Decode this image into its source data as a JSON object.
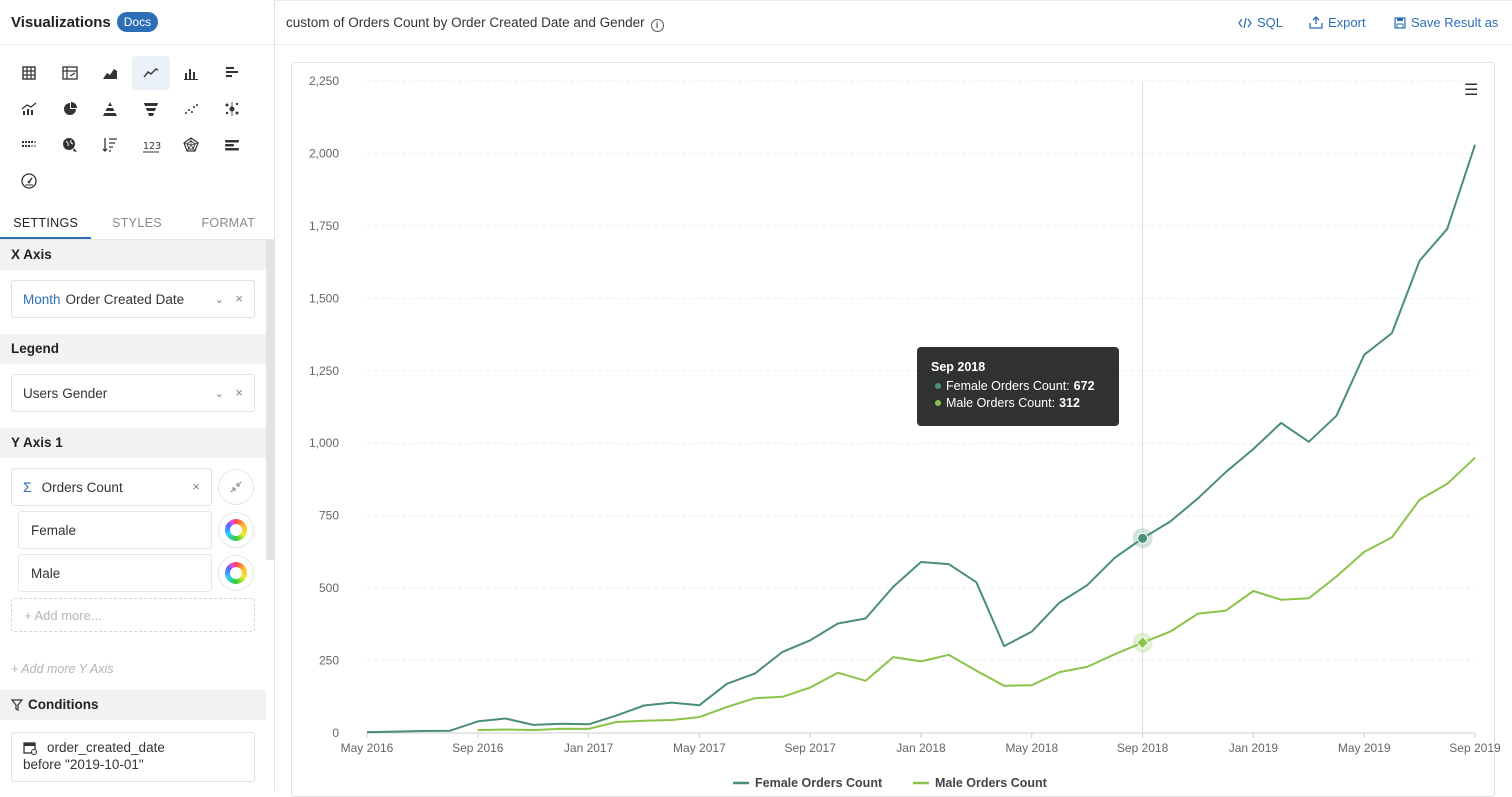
{
  "sidebar": {
    "title": "Visualizations",
    "docs_label": "Docs",
    "viz_icons": [
      "table-icon",
      "pivot-table-icon",
      "area-chart-icon",
      "line-chart-icon",
      "column-chart-icon",
      "bar-chart-icon",
      "combo-chart-icon",
      "pie-chart-icon",
      "pyramid-icon",
      "funnel-icon",
      "scatter-icon",
      "bubble-icon",
      "heatmap-icon",
      "geo-map-icon",
      "sort-list-icon",
      "number-card-icon",
      "radar-icon",
      "progress-bar-icon",
      "gauge-icon"
    ],
    "active_icon": "line-chart-icon",
    "tabs": [
      "SETTINGS",
      "STYLES",
      "FORMAT"
    ],
    "active_tab": "SETTINGS",
    "x_axis": {
      "header": "X Axis",
      "prefix": "Month",
      "value": "Order Created Date"
    },
    "legend": {
      "header": "Legend",
      "prefix": "Users",
      "value": "Gender"
    },
    "y_axis": {
      "header": "Y Axis 1",
      "sigma": "Σ",
      "value": "Orders Count",
      "series": [
        "Female",
        "Male"
      ],
      "add_more": "+ Add more...",
      "add_y": "+ Add more Y Axis"
    },
    "conditions": {
      "header": "Conditions",
      "field": "order_created_date",
      "condition": "before \"2019-10-01\""
    }
  },
  "topbar": {
    "title": "custom of Orders Count by Order Created Date and Gender",
    "info": "i",
    "sql": "SQL",
    "export": "Export",
    "save": "Save Result as"
  },
  "tooltip": {
    "title": "Sep 2018",
    "rows": [
      {
        "label": "Female Orders Count:",
        "value": "672",
        "color": "#4a8f74"
      },
      {
        "label": "Male Orders Count:",
        "value": "312",
        "color": "#8bc34a"
      }
    ]
  },
  "chart_data": {
    "type": "line",
    "title": "",
    "xlabel": "",
    "ylabel": "",
    "ylim": [
      0,
      2250
    ],
    "yticks": [
      0,
      250,
      500,
      750,
      1000,
      1250,
      1500,
      1750,
      2000,
      2250
    ],
    "ytick_labels": [
      "0",
      "250",
      "500",
      "750",
      "1,000",
      "1,250",
      "1,500",
      "1,750",
      "2,000",
      "2,250"
    ],
    "x": [
      "May 2016",
      "Jun 2016",
      "Jul 2016",
      "Aug 2016",
      "Sep 2016",
      "Oct 2016",
      "Nov 2016",
      "Dec 2016",
      "Jan 2017",
      "Feb 2017",
      "Mar 2017",
      "Apr 2017",
      "May 2017",
      "Jun 2017",
      "Jul 2017",
      "Aug 2017",
      "Sep 2017",
      "Oct 2017",
      "Nov 2017",
      "Dec 2017",
      "Jan 2018",
      "Feb 2018",
      "Mar 2018",
      "Apr 2018",
      "May 2018",
      "Jun 2018",
      "Jul 2018",
      "Aug 2018",
      "Sep 2018",
      "Oct 2018",
      "Nov 2018",
      "Dec 2018",
      "Jan 2019",
      "Feb 2019",
      "Mar 2019",
      "Apr 2019",
      "May 2019",
      "Jun 2019",
      "Jul 2019",
      "Aug 2019",
      "Sep 2019"
    ],
    "xtick_labels": [
      "May 2016",
      "Sep 2016",
      "Jan 2017",
      "May 2017",
      "Sep 2017",
      "Jan 2018",
      "May 2018",
      "Sep 2018",
      "Jan 2019",
      "May 2019",
      "Sep 2019"
    ],
    "series": [
      {
        "name": "Female Orders Count",
        "color": "#4a8f74",
        "values": [
          3,
          5,
          7,
          8,
          40,
          50,
          28,
          32,
          30,
          60,
          95,
          105,
          96,
          170,
          205,
          280,
          320,
          378,
          395,
          505,
          590,
          583,
          520,
          300,
          350,
          450,
          510,
          605,
          672,
          730,
          810,
          900,
          980,
          1070,
          1005,
          1095,
          1305,
          1380,
          1630,
          1740,
          2030
        ]
      },
      {
        "name": "Male Orders Count",
        "color": "#8bc34a",
        "values": [
          null,
          null,
          null,
          null,
          10,
          12,
          10,
          15,
          14,
          38,
          42,
          45,
          55,
          90,
          120,
          125,
          157,
          208,
          180,
          262,
          247,
          270,
          215,
          163,
          165,
          210,
          228,
          272,
          312,
          350,
          412,
          422,
          490,
          460,
          465,
          540,
          625,
          675,
          805,
          860,
          950
        ]
      }
    ],
    "highlight_index": 28,
    "legend_position": "bottom"
  }
}
